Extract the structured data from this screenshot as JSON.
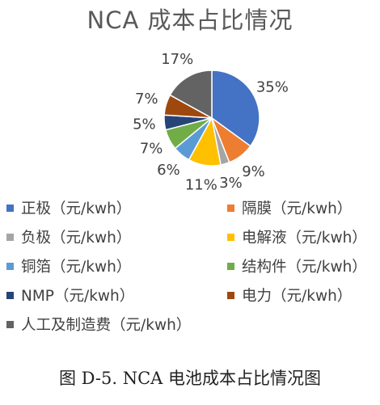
{
  "chart_data": {
    "type": "pie",
    "title": "NCA 成本占比情况",
    "slices": [
      {
        "name": "正极（元/kwh）",
        "value": 35,
        "label": "35%",
        "color": "#4472C4"
      },
      {
        "name": "隔膜（元/kwh）",
        "value": 9,
        "label": "9%",
        "color": "#ED7D31"
      },
      {
        "name": "负极（元/kwh）",
        "value": 3,
        "label": "3%",
        "color": "#A5A5A5"
      },
      {
        "name": "电解液（元/kwh）",
        "value": 11,
        "label": "11%",
        "color": "#FFC000"
      },
      {
        "name": "铜箔（元/kwh）",
        "value": 6,
        "label": "6%",
        "color": "#5B9BD5"
      },
      {
        "name": "结构件（元/kwh）",
        "value": 7,
        "label": "7%",
        "color": "#70AD47"
      },
      {
        "name": "NMP（元/kwh）",
        "value": 5,
        "label": "5%",
        "color": "#264478"
      },
      {
        "name": "电力（元/kwh）",
        "value": 7,
        "label": "7%",
        "color": "#9E480E"
      },
      {
        "name": "人工及制造费（元/kwh）",
        "value": 17,
        "label": "17%",
        "color": "#636363"
      }
    ],
    "legend_position": "bottom"
  },
  "caption": "图 D-5. NCA 电池成本占比情况图"
}
